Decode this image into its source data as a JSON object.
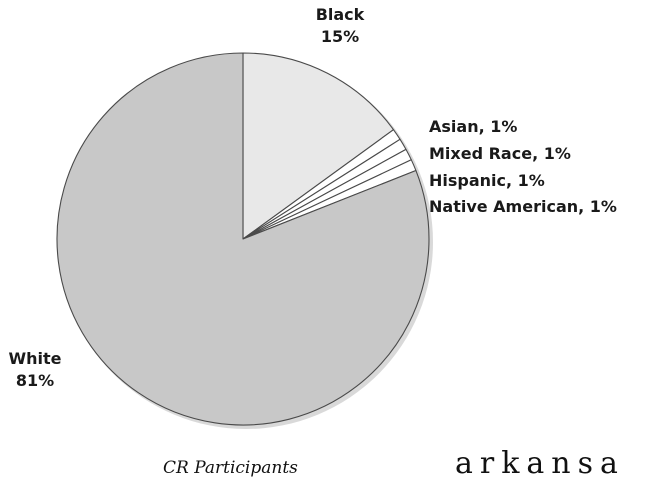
{
  "chart_data": {
    "type": "pie",
    "caption": "CR Participants",
    "slices": [
      {
        "category": "Black",
        "value": 15,
        "value_label": "15%",
        "color": "#e8e8e8"
      },
      {
        "category": "Asian",
        "value": 1,
        "value_label": "1%",
        "color": "#ffffff"
      },
      {
        "category": "Mixed Race",
        "value": 1,
        "value_label": "1%",
        "color": "#ffffff"
      },
      {
        "category": "Hispanic",
        "value": 1,
        "value_label": "1%",
        "color": "#ffffff"
      },
      {
        "category": "Native American",
        "value": 1,
        "value_label": "1%",
        "color": "#ffffff"
      },
      {
        "category": "White",
        "value": 81,
        "value_label": "81%",
        "color": "#c8c8c8"
      }
    ]
  },
  "footer_text": "arkansa"
}
